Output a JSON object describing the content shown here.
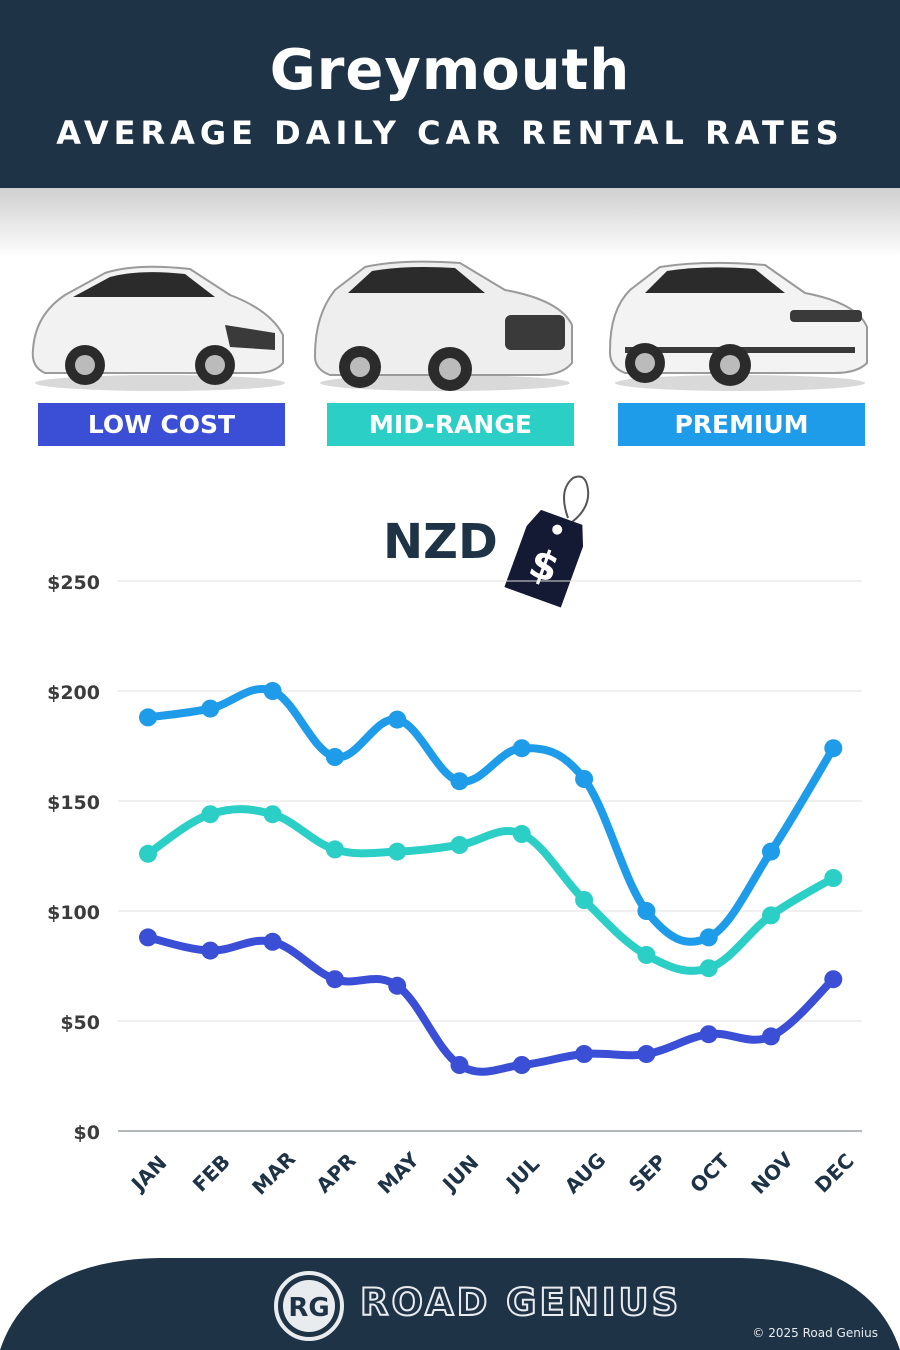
{
  "header": {
    "title": "Greymouth",
    "subtitle": "AVERAGE DAILY CAR RENTAL RATES"
  },
  "categories": [
    {
      "label": "LOW COST",
      "color": "#3b4fd6"
    },
    {
      "label": "MID-RANGE",
      "color": "#2ccfc6"
    },
    {
      "label": "PREMIUM",
      "color": "#1e9be9"
    }
  ],
  "currency": "NZD",
  "price_tag_symbol": "$",
  "chart_data": {
    "type": "line",
    "categories": [
      "JAN",
      "FEB",
      "MAR",
      "APR",
      "MAY",
      "JUN",
      "JUL",
      "AUG",
      "SEP",
      "OCT",
      "NOV",
      "DEC"
    ],
    "series": [
      {
        "name": "LOW COST",
        "color": "#3b4fd6",
        "values": [
          88,
          82,
          86,
          69,
          66,
          30,
          30,
          35,
          35,
          44,
          43,
          69
        ]
      },
      {
        "name": "MID-RANGE",
        "color": "#2ccfc6",
        "values": [
          126,
          144,
          144,
          128,
          127,
          130,
          135,
          105,
          80,
          74,
          98,
          115
        ]
      },
      {
        "name": "PREMIUM",
        "color": "#1e9be9",
        "values": [
          188,
          192,
          200,
          170,
          187,
          159,
          174,
          160,
          100,
          88,
          127,
          174
        ]
      }
    ],
    "y_ticks": [
      "$0",
      "$50",
      "$100",
      "$150",
      "$200",
      "$250"
    ],
    "ylim": [
      0,
      250
    ],
    "grid": true
  },
  "footer": {
    "logo_text": "RG",
    "brand": "ROAD GENIUS",
    "copyright": "© 2025 Road Genius"
  },
  "icons": [
    "hatchback-car-icon",
    "suv-car-icon",
    "premium-suv-car-icon",
    "price-tag-icon",
    "road-genius-logo-icon"
  ]
}
